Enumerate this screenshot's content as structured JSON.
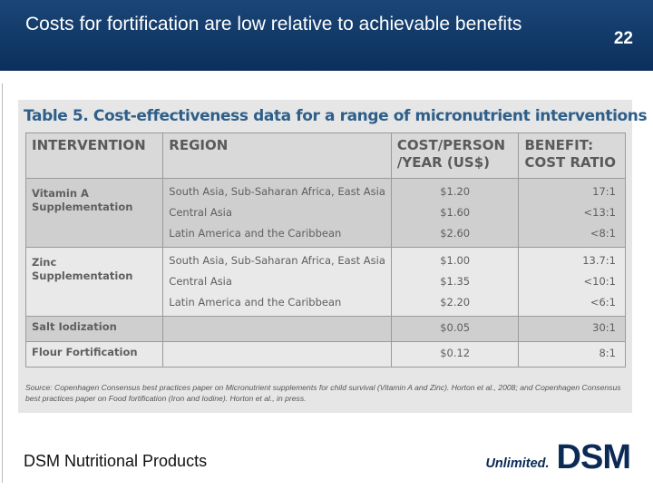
{
  "slide": {
    "title": "Costs for fortification are low relative to achievable benefits",
    "number": "22"
  },
  "table": {
    "caption": "Table 5. Cost-effectiveness data for a range of micronutrient interventions",
    "headers": {
      "intervention": "INTERVENTION",
      "region": "REGION",
      "cost": "COST/PERSON /YEAR (US$)",
      "benefit": "BENEFIT: COST RATIO"
    },
    "groups": [
      {
        "intervention": "Vitamin A Supplementation",
        "regions": [
          "South Asia, Sub-Saharan Africa, East Asia",
          "Central Asia",
          "Latin America and the Caribbean"
        ],
        "costs": [
          "$1.20",
          "$1.60",
          "$2.60"
        ],
        "ratios": [
          "17:1",
          "<13:1",
          "<8:1"
        ]
      },
      {
        "intervention": "Zinc  Supplementation",
        "regions": [
          "South Asia, Sub-Saharan Africa,  East Asia",
          "Central Asia",
          "Latin America and the Caribbean"
        ],
        "costs": [
          "$1.00",
          "$1.35",
          "$2.20"
        ],
        "ratios": [
          "13.7:1",
          "<10:1",
          "<6:1"
        ]
      },
      {
        "intervention": "Salt Iodization",
        "regions": [
          ""
        ],
        "costs": [
          "$0.05"
        ],
        "ratios": [
          "30:1"
        ]
      },
      {
        "intervention": "Flour Fortification",
        "regions": [
          ""
        ],
        "costs": [
          "$0.12"
        ],
        "ratios": [
          "8:1"
        ]
      }
    ],
    "source": "Source: Copenhagen Consensus best practices paper on Micronutrient supplements for child survival (Vitamin A and Zinc). Horton et al., 2008; and Copenhagen Consensus best practices paper on Food fortification (Iron and Iodine). Horton et al., in press."
  },
  "footer": {
    "company": "DSM Nutritional Products",
    "logo_tagline": "Unlimited.",
    "logo_mark": "DSM"
  },
  "colors": {
    "header_bg": "#0f3460",
    "caption": "#2e5f8a",
    "logo": "#0c2a56"
  }
}
